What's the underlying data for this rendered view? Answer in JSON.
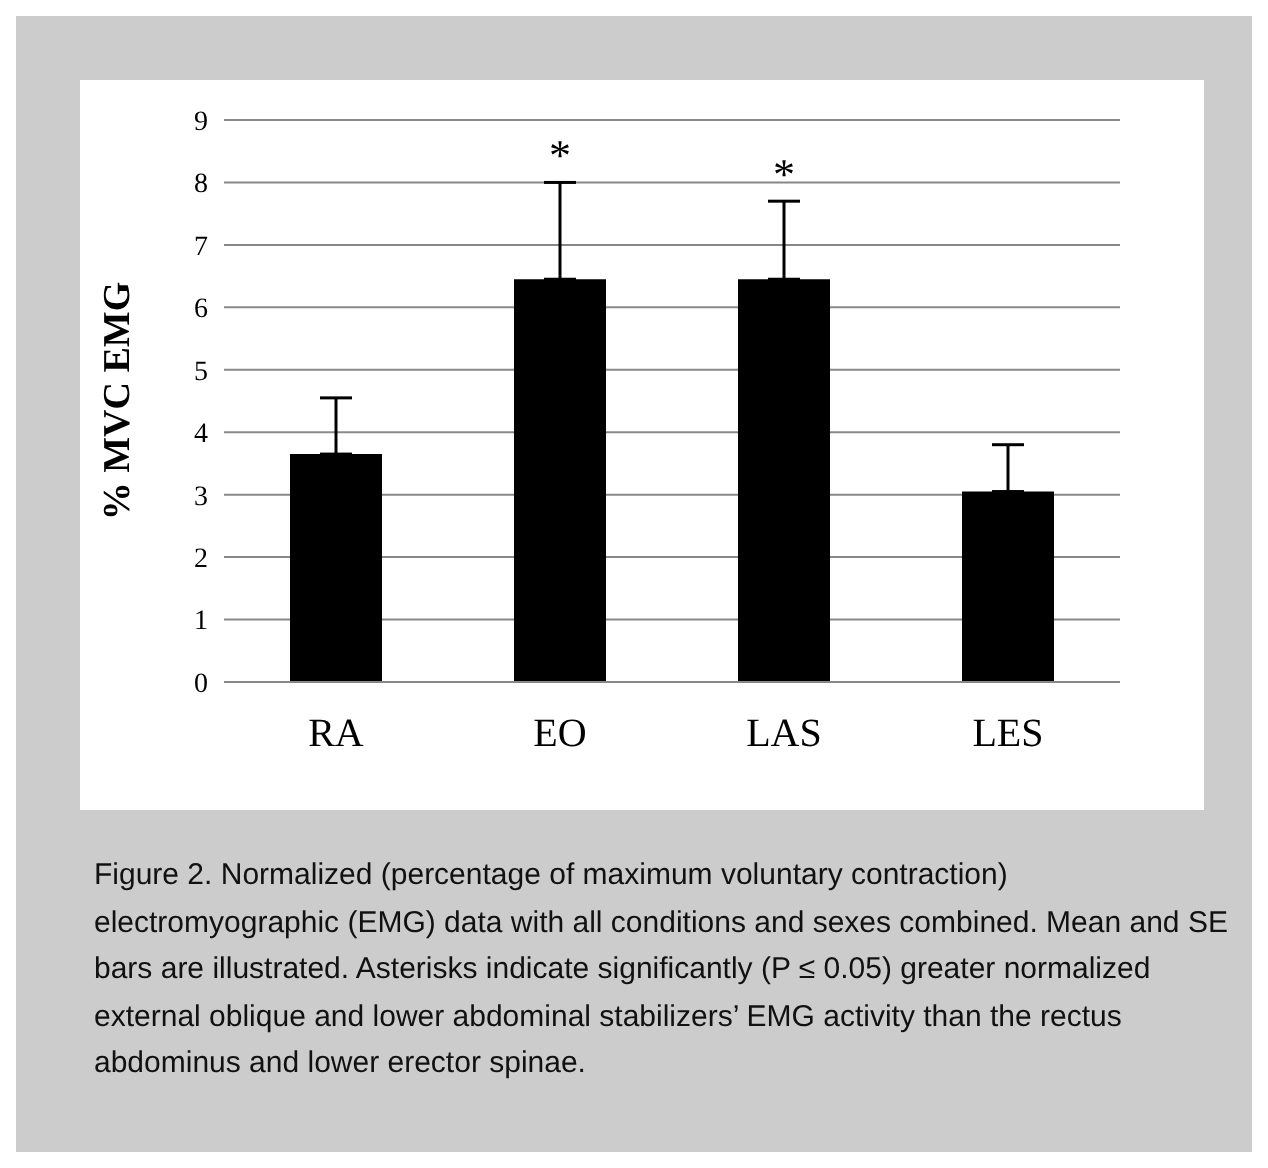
{
  "chart_data": {
    "type": "bar",
    "ylabel": "% MVC EMG",
    "categories": [
      "RA",
      "EO",
      "LAS",
      "LES"
    ],
    "values": [
      3.65,
      6.45,
      6.45,
      3.05
    ],
    "color": "#000000",
    "errors": [
      [
        3.65,
        4.55
      ],
      [
        6.45,
        8.0
      ],
      [
        6.45,
        7.7
      ],
      [
        3.05,
        3.8
      ]
    ],
    "ylim": [
      0,
      9
    ],
    "yticks": [
      0,
      1,
      2,
      3,
      4,
      5,
      6,
      7,
      8,
      9
    ],
    "grid": "y",
    "annotations": [
      {
        "text": "*",
        "x": "EO",
        "y": 8.0
      },
      {
        "text": "*",
        "x": "LAS",
        "y": 7.7
      },
      "Figure 2. Normalized (percentage of maximum voluntary contraction) electromyographic (EMG) data with all conditions and sexes combined. Mean and SE bars are illustrated. Asterisks indicate significantly (P ≤ 0.05) greater normalized external oblique and lower abdominal stabilizers’ EMG activity than the rectus abdominus and lower erector spinae."
    ]
  }
}
